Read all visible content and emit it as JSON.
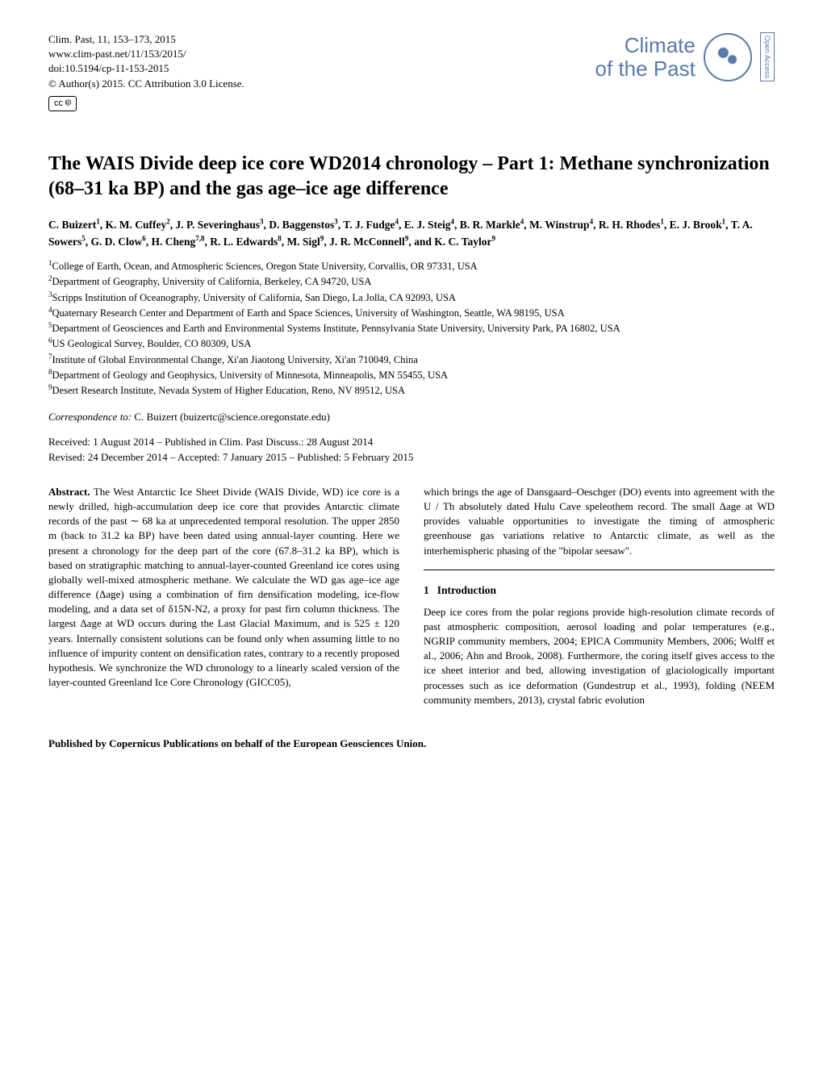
{
  "header": {
    "citation_line": "Clim. Past, 11, 153–173, 2015",
    "url": "www.clim-past.net/11/153/2015/",
    "doi": "doi:10.5194/cp-11-153-2015",
    "license_line": "© Author(s) 2015. CC Attribution 3.0 License.",
    "cc_badge": "cc  🅭",
    "journal_top": "Climate",
    "journal_bottom": "of the Past",
    "open_access": "Open Access"
  },
  "title": "The WAIS Divide deep ice core WD2014 chronology – Part 1: Methane synchronization (68–31 ka BP) and the gas age–ice age difference",
  "authors_html": "C. Buizert<sup>1</sup>, K. M. Cuffey<sup>2</sup>, J. P. Severinghaus<sup>3</sup>, D. Baggenstos<sup>3</sup>, T. J. Fudge<sup>4</sup>, E. J. Steig<sup>4</sup>, B. R. Markle<sup>4</sup>, M. Winstrup<sup>4</sup>, R. H. Rhodes<sup>1</sup>, E. J. Brook<sup>1</sup>, T. A. Sowers<sup>5</sup>, G. D. Clow<sup>6</sup>, H. Cheng<sup>7,8</sup>, R. L. Edwards<sup>8</sup>, M. Sigl<sup>9</sup>, J. R. McConnell<sup>9</sup>, and K. C. Taylor<sup>9</sup>",
  "affiliations": [
    "College of Earth, Ocean, and Atmospheric Sciences, Oregon State University, Corvallis, OR 97331, USA",
    "Department of Geography, University of California, Berkeley, CA 94720, USA",
    "Scripps Institution of Oceanography, University of California, San Diego, La Jolla, CA 92093, USA",
    "Quaternary Research Center and Department of Earth and Space Sciences, University of Washington, Seattle, WA 98195, USA",
    "Department of Geosciences and Earth and Environmental Systems Institute, Pennsylvania State University, University Park, PA 16802, USA",
    "US Geological Survey, Boulder, CO 80309, USA",
    "Institute of Global Environmental Change, Xi'an Jiaotong University, Xi'an 710049, China",
    "Department of Geology and Geophysics, University of Minnesota, Minneapolis, MN 55455, USA",
    "Desert Research Institute, Nevada System of Higher Education, Reno, NV 89512, USA"
  ],
  "correspondence": {
    "label": "Correspondence to:",
    "text": " C. Buizert (buizertc@science.oregonstate.edu)"
  },
  "dates": {
    "line1": "Received: 1 August 2014 – Published in Clim. Past Discuss.: 28 August 2014",
    "line2": "Revised: 24 December 2014 – Accepted: 7 January 2015 – Published: 5 February 2015"
  },
  "abstract": {
    "label": "Abstract.",
    "col1": " The West Antarctic Ice Sheet Divide (WAIS Divide, WD) ice core is a newly drilled, high-accumulation deep ice core that provides Antarctic climate records of the past ∼ 68 ka at unprecedented temporal resolution. The upper 2850 m (back to 31.2 ka BP) have been dated using annual-layer counting. Here we present a chronology for the deep part of the core (67.8–31.2 ka BP), which is based on stratigraphic matching to annual-layer-counted Greenland ice cores using globally well-mixed atmospheric methane. We calculate the WD gas age–ice age difference (Δage) using a combination of firn densification modeling, ice-flow modeling, and a data set of δ15N-N2, a proxy for past firn column thickness. The largest Δage at WD occurs during the Last Glacial Maximum, and is 525 ± 120 years. Internally consistent solutions can be found only when assuming little to no influence of impurity content on densification rates, contrary to a recently proposed hypothesis. We synchronize the WD chronology to a linearly scaled version of the layer-counted Greenland Ice Core Chronology (GICC05),",
    "col2": "which brings the age of Dansgaard–Oeschger (DO) events into agreement with the U / Th absolutely dated Hulu Cave speleothem record. The small Δage at WD provides valuable opportunities to investigate the timing of atmospheric greenhouse gas variations relative to Antarctic climate, as well as the interhemispheric phasing of the \"bipolar seesaw\"."
  },
  "section1": {
    "num": "1",
    "title": "Introduction",
    "body": "Deep ice cores from the polar regions provide high-resolution climate records of past atmospheric composition, aerosol loading and polar temperatures (e.g., NGRIP community members, 2004; EPICA Community Members, 2006; Wolff et al., 2006; Ahn and Brook, 2008). Furthermore, the coring itself gives access to the ice sheet interior and bed, allowing investigation of glaciologically important processes such as ice deformation (Gundestrup et al., 1993), folding (NEEM community members, 2013), crystal fabric evolution"
  },
  "footer": "Published by Copernicus Publications on behalf of the European Geosciences Union."
}
